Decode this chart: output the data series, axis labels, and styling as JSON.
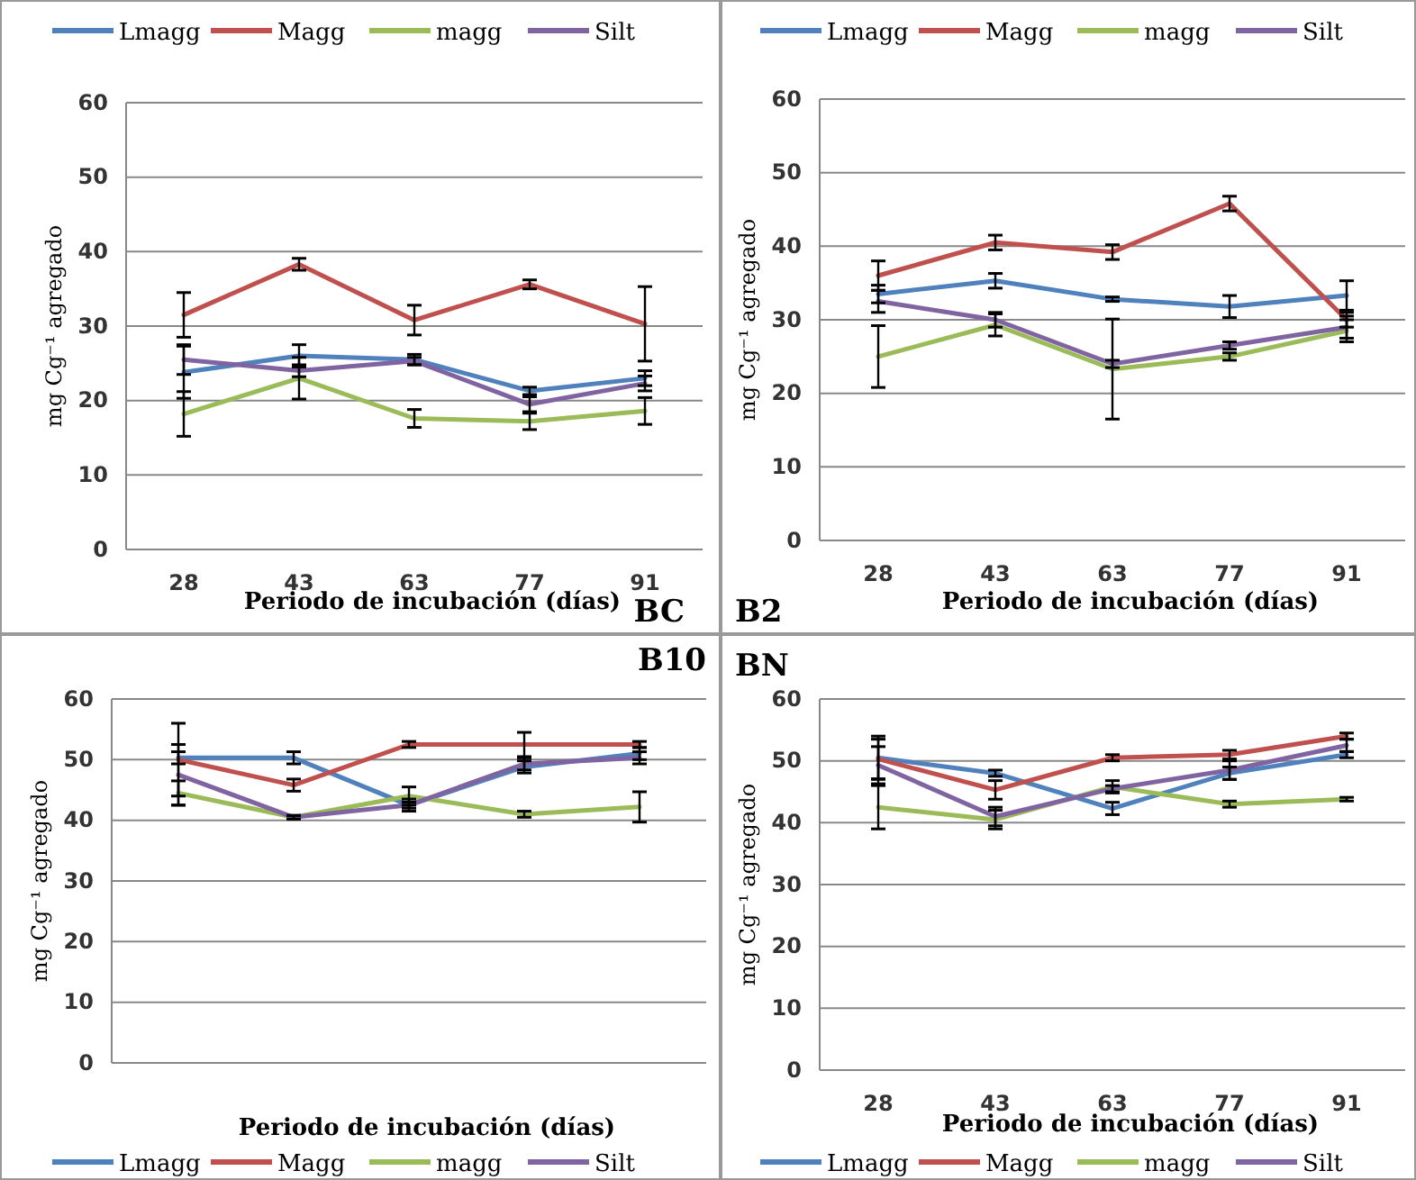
{
  "chart_data": [
    {
      "type": "line",
      "title": "BC",
      "xlabel": "Periodo de incubación (días)",
      "ylabel": "mg Cg⁻¹ agregado",
      "categories": [
        "28",
        "43",
        "63",
        "77",
        "91"
      ],
      "ylim": [
        0,
        60
      ],
      "yticks": [
        0,
        10,
        20,
        30,
        40,
        50,
        60
      ],
      "grid": "y",
      "legend": "top",
      "series": [
        {
          "name": "Lmagg",
          "color": "#4f81bd",
          "values": [
            23.8,
            26,
            25.5,
            21.3,
            23
          ],
          "errors": [
            3.5,
            1.5,
            0.7,
            0.5,
            1
          ]
        },
        {
          "name": "Magg",
          "color": "#c0504d",
          "values": [
            31.5,
            38.3,
            30.8,
            35.6,
            30.3
          ],
          "errors": [
            3,
            0.8,
            2,
            0.6,
            5
          ]
        },
        {
          "name": "magg",
          "color": "#9bbb59",
          "values": [
            18.2,
            23,
            17.6,
            17.2,
            18.6
          ],
          "errors": [
            3,
            2.8,
            1.2,
            1.1,
            1.8
          ]
        },
        {
          "name": "Silt",
          "color": "#8064a2",
          "values": [
            25.5,
            24,
            25.3,
            19.5,
            22.3
          ],
          "errors": [
            2,
            0.8,
            0.5,
            1,
            1
          ]
        }
      ]
    },
    {
      "type": "line",
      "title": "B2",
      "xlabel": "Periodo de incubación (días)",
      "ylabel": "mg Cg⁻¹ agregado",
      "categories": [
        "28",
        "43",
        "63",
        "77",
        "91"
      ],
      "ylim": [
        0,
        60
      ],
      "yticks": [
        0,
        10,
        20,
        30,
        40,
        50,
        60
      ],
      "grid": "y",
      "legend": "top",
      "series": [
        {
          "name": "Lmagg",
          "color": "#4f81bd",
          "values": [
            33.5,
            35.3,
            32.8,
            31.8,
            33.3
          ],
          "errors": [
            1.2,
            1,
            0.3,
            1.5,
            2
          ]
        },
        {
          "name": "Magg",
          "color": "#c0504d",
          "values": [
            36,
            40.5,
            39.2,
            45.8,
            30
          ],
          "errors": [
            2,
            1,
            1,
            1,
            1
          ]
        },
        {
          "name": "magg",
          "color": "#9bbb59",
          "values": [
            25,
            29.3,
            23.3,
            25,
            28.5
          ],
          "errors": [
            4.2,
            1.5,
            6.8,
            0.5,
            1.5
          ]
        },
        {
          "name": "Silt",
          "color": "#8064a2",
          "values": [
            32.5,
            30,
            24,
            26.5,
            29
          ],
          "errors": [
            1.5,
            1,
            0.5,
            0.5,
            1.5
          ]
        }
      ]
    },
    {
      "type": "line",
      "title": "B10",
      "xlabel": "Periodo de incubación (días)",
      "ylabel": "mg Cg⁻¹ agregado",
      "categories": [
        null,
        null,
        null,
        null,
        null
      ],
      "tick_labels": "y",
      "ylim": [
        0,
        60
      ],
      "yticks": [
        0,
        10,
        20,
        30,
        40,
        50,
        60
      ],
      "grid": "y",
      "legend": "bottom",
      "series": [
        {
          "name": "Lmagg",
          "color": "#4f81bd",
          "values": [
            50.3,
            50.3,
            42.5,
            48.8,
            51
          ],
          "errors": [
            1,
            1,
            1,
            1,
            1
          ]
        },
        {
          "name": "Magg",
          "color": "#c0504d",
          "values": [
            50,
            45.8,
            52.5,
            52.5,
            52.5
          ],
          "errors": [
            6,
            1,
            0.5,
            2,
            0.5
          ]
        },
        {
          "name": "magg",
          "color": "#9bbb59",
          "values": [
            44.5,
            40.5,
            44,
            41,
            42.2
          ],
          "errors": [
            2,
            0.3,
            1.5,
            0.5,
            2.5
          ]
        },
        {
          "name": "Silt",
          "color": "#8064a2",
          "values": [
            47.5,
            40.5,
            42.5,
            49.3,
            50.3
          ],
          "errors": [
            5,
            0.3,
            0.5,
            1,
            1
          ]
        }
      ]
    },
    {
      "type": "line",
      "title": "BN",
      "xlabel": "Periodo de incubación (días)",
      "ylabel": "mg Cg⁻¹ agregado",
      "categories": [
        "28",
        "43",
        "63",
        "77",
        "91"
      ],
      "ylim": [
        0,
        60
      ],
      "yticks": [
        0,
        10,
        20,
        30,
        40,
        50,
        60
      ],
      "grid": "y",
      "legend": "bottom",
      "series": [
        {
          "name": "Lmagg",
          "color": "#4f81bd",
          "values": [
            50.5,
            48,
            42.3,
            48,
            51
          ],
          "errors": [
            3.5,
            0.5,
            1,
            1,
            0.5
          ]
        },
        {
          "name": "Magg",
          "color": "#c0504d",
          "values": [
            50.3,
            45.3,
            50.5,
            51,
            54
          ],
          "errors": [
            3.2,
            1.5,
            0.5,
            0.7,
            0.5
          ]
        },
        {
          "name": "magg",
          "color": "#9bbb59",
          "values": [
            42.5,
            40.5,
            45.8,
            43,
            43.8
          ],
          "errors": [
            3.5,
            1.5,
            1,
            0.5,
            0.3
          ]
        },
        {
          "name": "Silt",
          "color": "#8064a2",
          "values": [
            49.3,
            41,
            45.5,
            48.5,
            52.5
          ],
          "errors": [
            3,
            1.5,
            0.5,
            1.5,
            1
          ]
        }
      ]
    }
  ]
}
